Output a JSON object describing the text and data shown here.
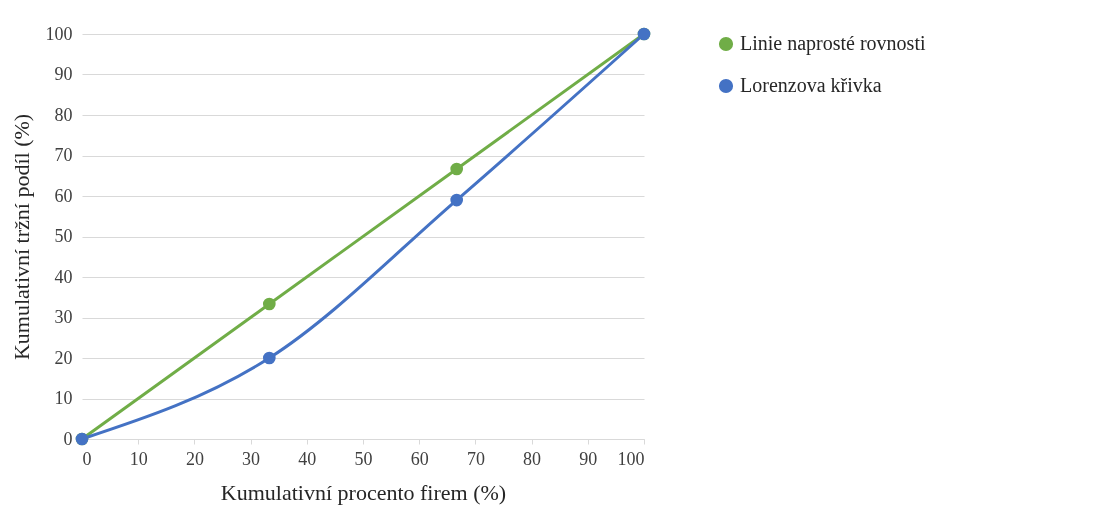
{
  "chart_data": {
    "type": "line",
    "xlabel": "Kumulativní procento firem (%)",
    "ylabel": "Kumulativní tržní podíl (%)",
    "x": [
      0,
      33.33,
      66.67,
      100
    ],
    "series": [
      {
        "name": "Linie naprosté rovnosti",
        "color": "#70ad47",
        "values": [
          0,
          33.33,
          66.67,
          100
        ]
      },
      {
        "name": "Lorenzova křivka",
        "color": "#4472c4",
        "values": [
          0,
          20,
          59,
          100
        ]
      }
    ],
    "xlim": [
      0,
      100
    ],
    "xticks": [
      0,
      10,
      20,
      30,
      40,
      50,
      60,
      70,
      80,
      90,
      100
    ],
    "ylim": [
      0,
      100
    ],
    "yticks": [
      0,
      10,
      20,
      30,
      40,
      50,
      60,
      70,
      80,
      90,
      100
    ],
    "grid": "y",
    "legend": "right",
    "marker": "circle",
    "line_style": "solid"
  }
}
